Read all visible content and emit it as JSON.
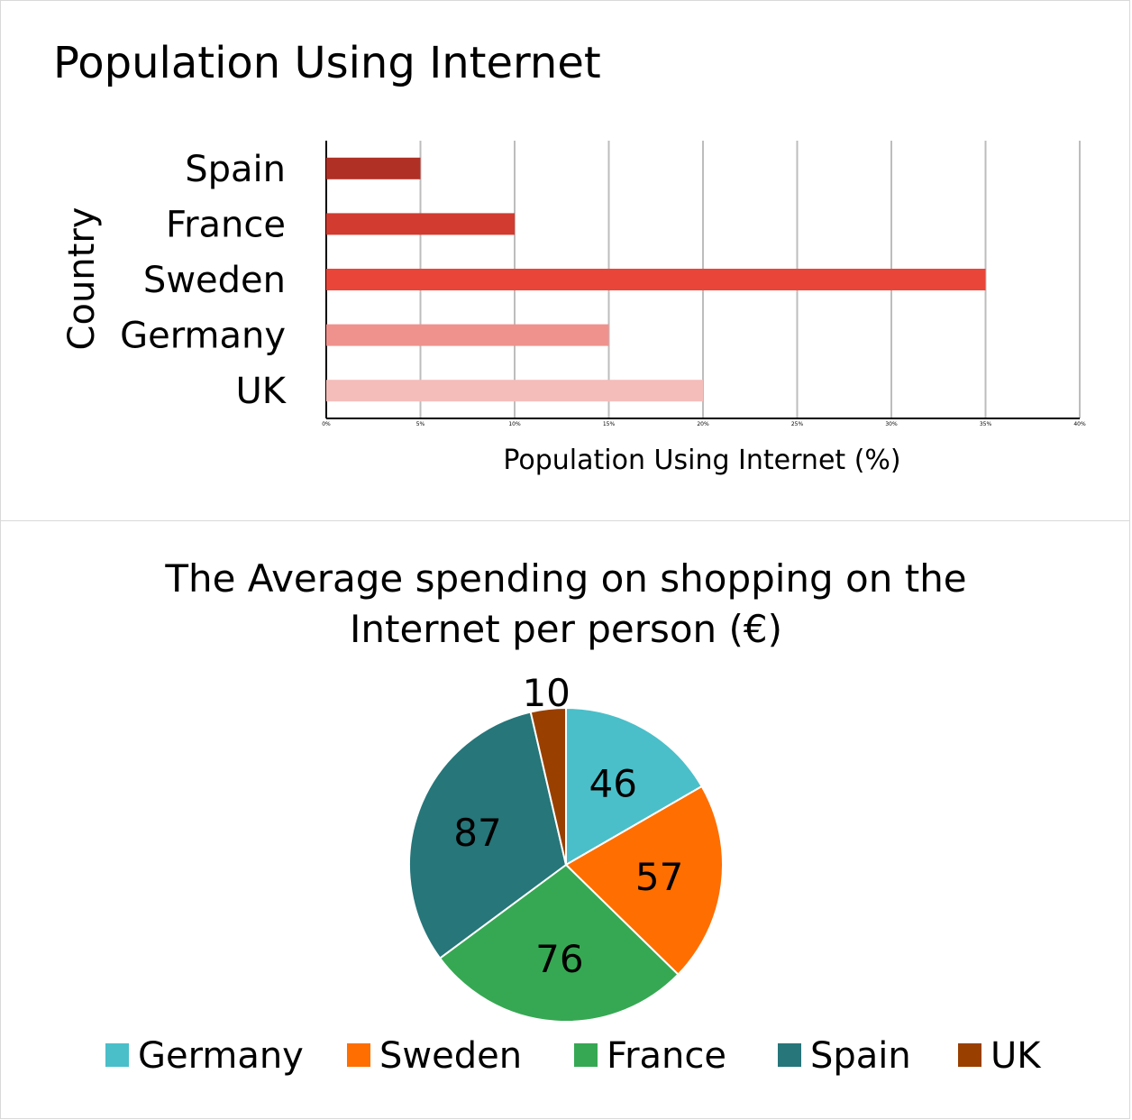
{
  "chart_data": [
    {
      "type": "bar",
      "orientation": "horizontal",
      "title": "Population Using Internet",
      "xlabel": "Population Using Internet (%)",
      "ylabel": "Country",
      "categories": [
        "Spain",
        "France",
        "Sweden",
        "Germany",
        "UK"
      ],
      "values": [
        5,
        10,
        35,
        15,
        20
      ],
      "colors": [
        "#b03025",
        "#d13b30",
        "#e94539",
        "#ef928d",
        "#f4bdba"
      ],
      "xlim": [
        0,
        40
      ],
      "xticks": [
        "0%",
        "5%",
        "10%",
        "15%",
        "20%",
        "25%",
        "30%",
        "35%",
        "40%"
      ],
      "grid": true,
      "legend": "none"
    },
    {
      "type": "pie",
      "title": "The Average spending on shopping on the Internet per person (€)",
      "labels": [
        "Germany",
        "Sweden",
        "France",
        "Spain",
        "UK"
      ],
      "values": [
        46,
        57,
        76,
        87,
        10
      ],
      "colors": [
        "#4abfc9",
        "#ff6e00",
        "#36a853",
        "#26767a",
        "#993f00"
      ],
      "legend": "bottom"
    }
  ]
}
